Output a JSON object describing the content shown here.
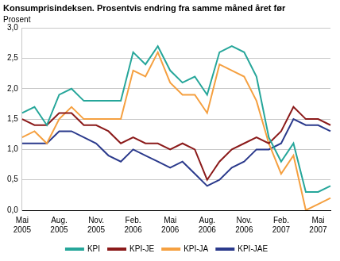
{
  "chart_data": {
    "type": "line",
    "title": "Konsumprisindeksen. Prosentvis endring fra samme måned året før",
    "y_label": "Prosent",
    "categories": [
      "Mai 2005",
      null,
      null,
      "Aug. 2005",
      null,
      null,
      "Nov. 2005",
      null,
      null,
      "Feb. 2006",
      null,
      null,
      "Mai 2006",
      null,
      null,
      "Aug. 2006",
      null,
      null,
      "Nov. 2006",
      null,
      null,
      "Feb. 2007",
      null,
      null,
      "Mai 2007",
      null
    ],
    "series": [
      {
        "name": "KPI",
        "color": "#26a69a",
        "values": [
          1.6,
          1.7,
          1.4,
          1.9,
          2.0,
          1.8,
          1.8,
          1.8,
          1.8,
          2.6,
          2.4,
          2.7,
          2.3,
          2.1,
          2.2,
          1.9,
          2.6,
          2.7,
          2.6,
          2.2,
          1.2,
          0.8,
          1.1,
          0.3,
          0.3,
          0.4
        ]
      },
      {
        "name": "KPI-JE",
        "color": "#8b1a1a",
        "values": [
          1.5,
          1.4,
          1.4,
          1.6,
          1.6,
          1.4,
          1.4,
          1.3,
          1.1,
          1.2,
          1.1,
          1.1,
          1.0,
          1.1,
          1.0,
          0.5,
          0.8,
          1.0,
          1.1,
          1.2,
          1.1,
          1.3,
          1.7,
          1.5,
          1.5,
          1.4
        ]
      },
      {
        "name": "KPI-JA",
        "color": "#f5a040",
        "values": [
          1.2,
          1.3,
          1.1,
          1.5,
          1.7,
          1.5,
          1.5,
          1.5,
          1.5,
          2.3,
          2.2,
          2.6,
          2.1,
          1.9,
          1.9,
          1.6,
          2.4,
          2.3,
          2.2,
          1.8,
          1.1,
          0.6,
          0.9,
          0.0,
          0.1,
          0.2
        ]
      },
      {
        "name": "KPI-JAE",
        "color": "#2b3a8c",
        "values": [
          1.1,
          1.1,
          1.1,
          1.3,
          1.3,
          1.2,
          1.1,
          0.9,
          0.8,
          1.0,
          0.9,
          0.8,
          0.7,
          0.8,
          0.6,
          0.4,
          0.5,
          0.7,
          0.8,
          1.0,
          1.0,
          1.1,
          1.5,
          1.4,
          1.4,
          1.3
        ]
      }
    ],
    "ylim": [
      0,
      3
    ],
    "yticks": [
      {
        "value": 0,
        "label": "0,0"
      },
      {
        "value": 0.5,
        "label": "0,5"
      },
      {
        "value": 1,
        "label": "1,0"
      },
      {
        "value": 1.5,
        "label": "1,5"
      },
      {
        "value": 2,
        "label": "2,0"
      },
      {
        "value": 2.5,
        "label": "2,5"
      },
      {
        "value": 3,
        "label": "3,0"
      }
    ],
    "grid": true,
    "legend": "bottom"
  }
}
